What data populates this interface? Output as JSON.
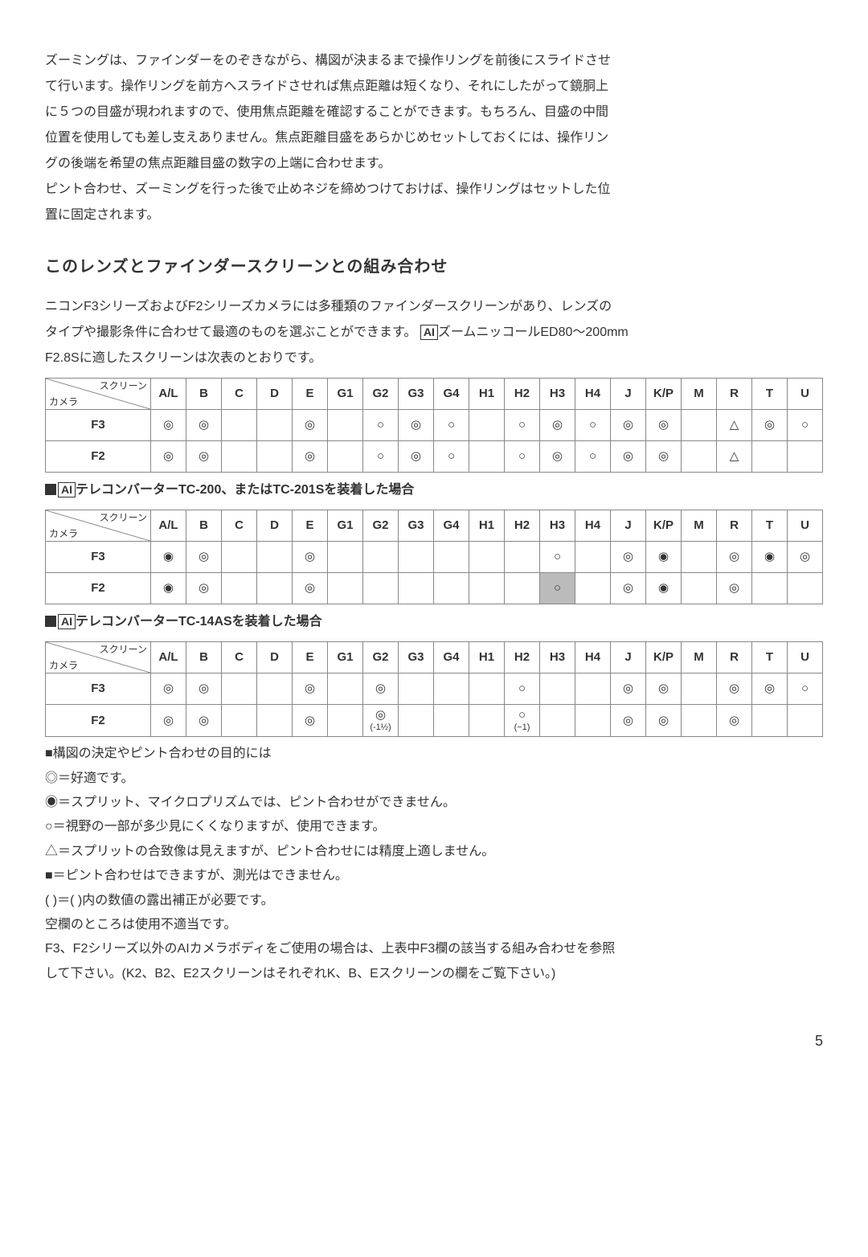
{
  "para1": [
    "ズーミングは、ファインダーをのぞきながら、構図が決まるまで操作リングを前後にスライドさせ",
    "て行います。操作リングを前方へスライドさせれば焦点距離は短くなり、それにしたがって鏡胴上",
    "に５つの目盛が現われますので、使用焦点距離を確認することができます。もちろん、目盛の中間",
    "位置を使用しても差し支えありません。焦点距離目盛をあらかじめセットしておくには、操作リン",
    "グの後端を希望の焦点距離目盛の数字の上端に合わせます。",
    "ピント合わせ、ズーミングを行った後で止めネジを締めつけておけば、操作リングはセットした位",
    "置に固定されます。"
  ],
  "heading": "このレンズとファインダースクリーンとの組み合わせ",
  "para2": [
    "ニコンF3シリーズおよびF2シリーズカメラには多種類のファインダースクリーンがあり、レンズの",
    "タイプや撮影条件に合わせて最適のものを選ぶことができます。",
    "F2.8Sに適したスクリーンは次表のとおりです。"
  ],
  "ai_label": "AI",
  "para2_tail": "ズームニッコールED80～200mm",
  "corner": {
    "tl": "カメラ",
    "br": "スクリーン"
  },
  "columns": [
    "A/L",
    "B",
    "C",
    "D",
    "E",
    "G1",
    "G2",
    "G3",
    "G4",
    "H1",
    "H2",
    "H3",
    "H4",
    "J",
    "K/P",
    "M",
    "R",
    "T",
    "U"
  ],
  "tables": [
    {
      "caption": "",
      "rows": [
        {
          "head": "F3",
          "cells": [
            "◎",
            "◎",
            "",
            "",
            "◎",
            "",
            "○",
            "◎",
            "○",
            "",
            "○",
            "◎",
            "○",
            "◎",
            "◎",
            "",
            "△",
            "◎",
            "○"
          ]
        },
        {
          "head": "F2",
          "cells": [
            "◎",
            "◎",
            "",
            "",
            "◎",
            "",
            "○",
            "◎",
            "○",
            "",
            "○",
            "◎",
            "○",
            "◎",
            "◎",
            "",
            "△",
            "",
            ""
          ]
        }
      ]
    },
    {
      "caption": "テレコンバーターTC-200、またはTC-201Sを装着した場合",
      "rows": [
        {
          "head": "F3",
          "cells": [
            "◉",
            "◎",
            "",
            "",
            "◎",
            "",
            "",
            "",
            "",
            "",
            "",
            "○",
            "",
            "◎",
            "◉",
            "",
            "◎",
            "◉",
            "◎"
          ]
        },
        {
          "head": "F2",
          "cells": [
            "◉",
            "◎",
            "",
            "",
            "◎",
            "",
            "",
            "",
            "",
            "",
            "",
            "○",
            "",
            "◎",
            "◉",
            "",
            "◎",
            "",
            ""
          ],
          "shaded": [
            11
          ]
        }
      ]
    },
    {
      "caption": "テレコンバーターTC-14ASを装着した場合",
      "rows": [
        {
          "head": "F3",
          "cells": [
            "◎",
            "◎",
            "",
            "",
            "◎",
            "",
            "◎",
            "",
            "",
            "",
            "○",
            "",
            "",
            "◎",
            "◎",
            "",
            "◎",
            "◎",
            "○"
          ]
        },
        {
          "head": "F2",
          "cells": [
            "◎",
            "◎",
            "",
            "",
            "◎",
            "",
            "◎\n(-1½)",
            "",
            "",
            "",
            "○\n(−1)",
            "",
            "",
            "◎",
            "◎",
            "",
            "◎",
            "",
            ""
          ]
        }
      ]
    }
  ],
  "legend_head": "■構図の決定やピント合わせの目的には",
  "legend": [
    "◎＝好適です。",
    "◉＝スプリット、マイクロプリズムでは、ピント合わせができません。",
    "○＝視野の一部が多少見にくくなりますが、使用できます。",
    "△＝スプリットの合致像は見えますが、ピント合わせには精度上適しません。",
    "■＝ピント合わせはできますが、測光はできません。",
    "(  )＝(  )内の数値の露出補正が必要です。",
    "空欄のところは使用不適当です。",
    "F3、F2シリーズ以外のAIカメラボディをご使用の場合は、上表中F3欄の該当する組み合わせを参照",
    "して下さい。(K2、B2、E2スクリーンはそれぞれK、B、Eスクリーンの欄をご覧下さい。)"
  ],
  "page": "5"
}
